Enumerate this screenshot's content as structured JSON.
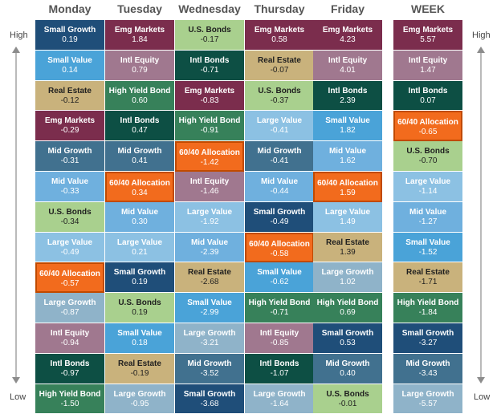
{
  "labels": {
    "high_left": "High",
    "low_left": "Low",
    "high_right": "High",
    "low_right": "Low"
  },
  "colors": {
    "Small Growth": "#1f4e79",
    "Small Value": "#4aa3d8",
    "Real Estate": "#c9b27c",
    "Emg Markets": "#7b2d4d",
    "Mid Growth": "#41718f",
    "Mid Value": "#6fb0de",
    "U.S. Bonds": "#a9d08e",
    "Large Value": "#8cc1e3",
    "60/40 Allocation": "#f26b1d",
    "Large Growth": "#8fb3c9",
    "Intl Equity": "#a0788f",
    "Intl Bonds": "#0d4f44",
    "High Yield Bond": "#37815a"
  },
  "chart_data": {
    "type": "table",
    "columns": [
      {
        "name": "Monday",
        "cells": [
          {
            "label": "Small Growth",
            "value": "0.19"
          },
          {
            "label": "Small Value",
            "value": "0.14"
          },
          {
            "label": "Real Estate",
            "value": "-0.12"
          },
          {
            "label": "Emg Markets",
            "value": "-0.29"
          },
          {
            "label": "Mid Growth",
            "value": "-0.31"
          },
          {
            "label": "Mid Value",
            "value": "-0.33"
          },
          {
            "label": "U.S. Bonds",
            "value": "-0.34"
          },
          {
            "label": "Large Value",
            "value": "-0.49"
          },
          {
            "label": "60/40 Allocation",
            "value": "-0.57"
          },
          {
            "label": "Large Growth",
            "value": "-0.87"
          },
          {
            "label": "Intl Equity",
            "value": "-0.94"
          },
          {
            "label": "Intl Bonds",
            "value": "-0.97"
          },
          {
            "label": "High Yield Bond",
            "value": "-1.50"
          }
        ]
      },
      {
        "name": "Tuesday",
        "cells": [
          {
            "label": "Emg Markets",
            "value": "1.84"
          },
          {
            "label": "Intl Equity",
            "value": "0.79"
          },
          {
            "label": "High Yield Bond",
            "value": "0.60"
          },
          {
            "label": "Intl Bonds",
            "value": "0.47"
          },
          {
            "label": "Mid Growth",
            "value": "0.41"
          },
          {
            "label": "60/40 Allocation",
            "value": "0.34"
          },
          {
            "label": "Mid Value",
            "value": "0.30"
          },
          {
            "label": "Large Value",
            "value": "0.21"
          },
          {
            "label": "Small Growth",
            "value": "0.19"
          },
          {
            "label": "U.S. Bonds",
            "value": "0.19"
          },
          {
            "label": "Small Value",
            "value": "0.18"
          },
          {
            "label": "Real Estate",
            "value": "-0.19"
          },
          {
            "label": "Large Growth",
            "value": "-0.95"
          }
        ]
      },
      {
        "name": "Wednesday",
        "cells": [
          {
            "label": "U.S. Bonds",
            "value": "-0.17"
          },
          {
            "label": "Intl Bonds",
            "value": "-0.71"
          },
          {
            "label": "Emg Markets",
            "value": "-0.83"
          },
          {
            "label": "High Yield Bond",
            "value": "-0.91"
          },
          {
            "label": "60/40 Allocation",
            "value": "-1.42"
          },
          {
            "label": "Intl Equity",
            "value": "-1.46"
          },
          {
            "label": "Large Value",
            "value": "-1.92"
          },
          {
            "label": "Mid Value",
            "value": "-2.39"
          },
          {
            "label": "Real Estate",
            "value": "-2.68"
          },
          {
            "label": "Small Value",
            "value": "-2.99"
          },
          {
            "label": "Large Growth",
            "value": "-3.21"
          },
          {
            "label": "Mid Growth",
            "value": "-3.52"
          },
          {
            "label": "Small Growth",
            "value": "-3.68"
          }
        ]
      },
      {
        "name": "Thursday",
        "cells": [
          {
            "label": "Emg Markets",
            "value": "0.58"
          },
          {
            "label": "Real Estate",
            "value": "-0.07"
          },
          {
            "label": "U.S. Bonds",
            "value": "-0.37"
          },
          {
            "label": "Large Value",
            "value": "-0.41"
          },
          {
            "label": "Mid Growth",
            "value": "-0.41"
          },
          {
            "label": "Mid Value",
            "value": "-0.44"
          },
          {
            "label": "Small Growth",
            "value": "-0.49"
          },
          {
            "label": "60/40 Allocation",
            "value": "-0.58"
          },
          {
            "label": "Small Value",
            "value": "-0.62"
          },
          {
            "label": "High Yield Bond",
            "value": "-0.71"
          },
          {
            "label": "Intl Equity",
            "value": "-0.85"
          },
          {
            "label": "Intl Bonds",
            "value": "-1.07"
          },
          {
            "label": "Large Growth",
            "value": "-1.64"
          }
        ]
      },
      {
        "name": "Friday",
        "cells": [
          {
            "label": "Emg Markets",
            "value": "4.23"
          },
          {
            "label": "Intl Equity",
            "value": "4.01"
          },
          {
            "label": "Intl Bonds",
            "value": "2.39"
          },
          {
            "label": "Small Value",
            "value": "1.82"
          },
          {
            "label": "Mid Value",
            "value": "1.62"
          },
          {
            "label": "60/40 Allocation",
            "value": "1.59"
          },
          {
            "label": "Large Value",
            "value": "1.49"
          },
          {
            "label": "Real Estate",
            "value": "1.39"
          },
          {
            "label": "Large Growth",
            "value": "1.02"
          },
          {
            "label": "High Yield Bond",
            "value": "0.69"
          },
          {
            "label": "Small Growth",
            "value": "0.53"
          },
          {
            "label": "Mid Growth",
            "value": "0.40"
          },
          {
            "label": "U.S. Bonds",
            "value": "-0.01"
          }
        ]
      },
      {
        "name": "WEEK",
        "cells": [
          {
            "label": "Emg Markets",
            "value": "5.57"
          },
          {
            "label": "Intl Equity",
            "value": "1.47"
          },
          {
            "label": "Intl Bonds",
            "value": "0.07"
          },
          {
            "label": "60/40 Allocation",
            "value": "-0.65"
          },
          {
            "label": "U.S. Bonds",
            "value": "-0.70"
          },
          {
            "label": "Large Value",
            "value": "-1.14"
          },
          {
            "label": "Mid Value",
            "value": "-1.27"
          },
          {
            "label": "Small Value",
            "value": "-1.52"
          },
          {
            "label": "Real Estate",
            "value": "-1.71"
          },
          {
            "label": "High Yield Bond",
            "value": "-1.84"
          },
          {
            "label": "Small Growth",
            "value": "-3.27"
          },
          {
            "label": "Mid Growth",
            "value": "-3.43"
          },
          {
            "label": "Large Growth",
            "value": "-5.57"
          }
        ]
      }
    ]
  }
}
